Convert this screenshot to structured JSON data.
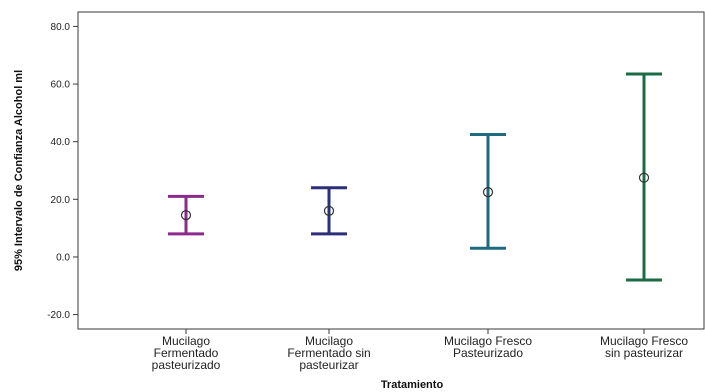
{
  "chart_data": {
    "type": "errorbar",
    "title": "",
    "xlabel": "Tratamiento",
    "ylabel": "95% Intervalo de Confianza Alcohol ml",
    "ylim": [
      -25,
      85
    ],
    "yticks": [
      -20.0,
      0.0,
      20.0,
      40.0,
      60.0,
      80.0
    ],
    "ytick_labels": [
      "-20.0",
      "0.0",
      "20.0",
      "40.0",
      "60.0",
      "80.0"
    ],
    "grid": false,
    "categories": [
      [
        "Mucilago",
        "Fermentado",
        "pasteurizado"
      ],
      [
        "Mucilago",
        "Fermentado sin",
        "pasteurizar"
      ],
      [
        "Mucilago Fresco",
        "Pasteurizado"
      ],
      [
        "Mucilago Fresco",
        "sin pasteurizar"
      ]
    ],
    "series": [
      {
        "mean": 14.5,
        "lower": 8.0,
        "upper": 21.0,
        "color": "#8b2a8b"
      },
      {
        "mean": 16.0,
        "lower": 8.0,
        "upper": 24.0,
        "color": "#2e2f7a"
      },
      {
        "mean": 22.5,
        "lower": 3.0,
        "upper": 42.5,
        "color": "#1f6a80"
      },
      {
        "mean": 27.5,
        "lower": -8.0,
        "upper": 63.5,
        "color": "#1b6b45"
      }
    ]
  }
}
